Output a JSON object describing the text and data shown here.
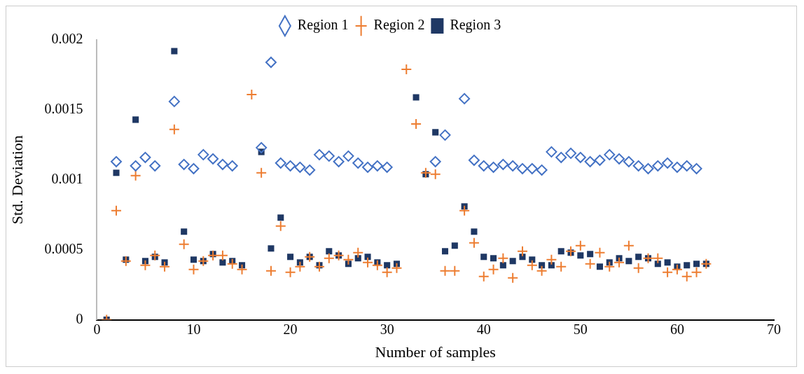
{
  "chart_data": {
    "type": "scatter",
    "xlabel": "Number of samples",
    "ylabel": "Std. Deviation",
    "x": [
      1,
      2,
      3,
      4,
      5,
      6,
      7,
      8,
      9,
      10,
      11,
      12,
      13,
      14,
      15,
      16,
      17,
      18,
      19,
      20,
      21,
      22,
      23,
      24,
      25,
      26,
      27,
      28,
      29,
      30,
      31,
      32,
      33,
      34,
      35,
      36,
      37,
      38,
      39,
      40,
      41,
      42,
      43,
      44,
      45,
      46,
      47,
      48,
      49,
      50,
      51,
      52,
      53,
      54,
      55,
      56,
      57,
      58,
      59,
      60,
      61,
      62,
      63
    ],
    "series": [
      {
        "name": "Region 1",
        "color": "#4472c4",
        "marker": "diamond",
        "values": [
          null,
          0.00113,
          null,
          0.0011,
          0.00116,
          0.0011,
          null,
          0.00156,
          0.00111,
          0.00108,
          0.00118,
          0.00115,
          0.00111,
          0.0011,
          null,
          null,
          0.00123,
          0.00184,
          0.00112,
          0.0011,
          0.00109,
          0.00107,
          0.00118,
          0.00117,
          0.00113,
          0.00117,
          0.00112,
          0.00109,
          0.0011,
          0.00109,
          null,
          null,
          null,
          null,
          0.00113,
          0.00132,
          null,
          0.00158,
          0.00114,
          0.0011,
          0.00109,
          0.00111,
          0.0011,
          0.00108,
          0.00108,
          0.00107,
          0.0012,
          0.00116,
          0.00119,
          0.00116,
          0.00113,
          0.00114,
          0.00118,
          0.00115,
          0.00113,
          0.0011,
          0.00108,
          0.0011,
          0.00112,
          0.00109,
          0.0011,
          0.00108,
          null
        ]
      },
      {
        "name": "Region 2",
        "color": "#ed7d31",
        "marker": "cross",
        "values": [
          0,
          0.00078,
          0.00042,
          0.00103,
          0.00039,
          0.00046,
          0.00038,
          0.00136,
          0.00054,
          0.00036,
          0.00042,
          0.00046,
          0.00046,
          0.0004,
          0.00036,
          0.00161,
          0.00105,
          0.00035,
          0.00067,
          0.00034,
          0.00038,
          0.00045,
          0.00038,
          0.00044,
          0.00046,
          0.00043,
          0.00048,
          0.00041,
          0.00039,
          0.00034,
          0.00037,
          0.00179,
          0.0014,
          0.00105,
          0.00104,
          0.00035,
          0.00035,
          0.00078,
          0.00055,
          0.00031,
          0.00036,
          0.00044,
          0.0003,
          0.00049,
          0.00039,
          0.00035,
          0.00043,
          0.00038,
          0.00049,
          0.00053,
          0.0004,
          0.00048,
          0.00038,
          0.00041,
          0.00053,
          0.00037,
          0.00044,
          0.00044,
          0.00034,
          0.00036,
          0.00031,
          0.00034,
          0.0004
        ]
      },
      {
        "name": "Region 3",
        "color": "#1f3864",
        "marker": "square",
        "values": [
          0,
          0.00105,
          0.00043,
          0.00143,
          0.00042,
          0.00045,
          0.00041,
          0.00192,
          0.00063,
          0.00043,
          0.00042,
          0.00047,
          0.00041,
          0.00042,
          0.00039,
          null,
          0.0012,
          0.00051,
          0.00073,
          0.00045,
          0.00041,
          0.00045,
          0.00039,
          0.00049,
          0.00046,
          0.0004,
          0.00044,
          0.00045,
          0.00041,
          0.00039,
          0.0004,
          null,
          0.00159,
          0.00104,
          0.00134,
          0.00049,
          0.00053,
          0.00081,
          0.00063,
          0.00045,
          0.00044,
          0.00039,
          0.00042,
          0.00045,
          0.00043,
          0.00039,
          0.00039,
          0.00049,
          0.00048,
          0.00046,
          0.00047,
          0.00038,
          0.00041,
          0.00044,
          0.00042,
          0.00045,
          0.00044,
          0.0004,
          0.00041,
          0.00038,
          0.00039,
          0.0004,
          0.0004
        ]
      }
    ],
    "xlim": [
      0,
      70
    ],
    "xticks": [
      0,
      10,
      20,
      30,
      40,
      50,
      60,
      70
    ],
    "ylim": [
      0,
      0.002
    ],
    "yticks": [
      0,
      0.0005,
      0.001,
      0.0015,
      0.002
    ],
    "grid": false,
    "legend": "top"
  }
}
